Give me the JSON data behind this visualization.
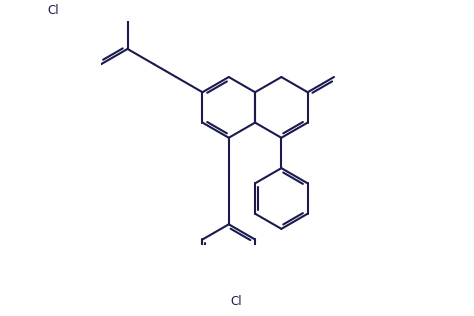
{
  "bg_color": "#ffffff",
  "line_color": "#1a1a4e",
  "line_width": 1.5,
  "figsize": [
    4.74,
    3.16
  ],
  "dpi": 100,
  "xlim": [
    -2.5,
    7.5
  ],
  "ylim": [
    -3.5,
    3.5
  ]
}
